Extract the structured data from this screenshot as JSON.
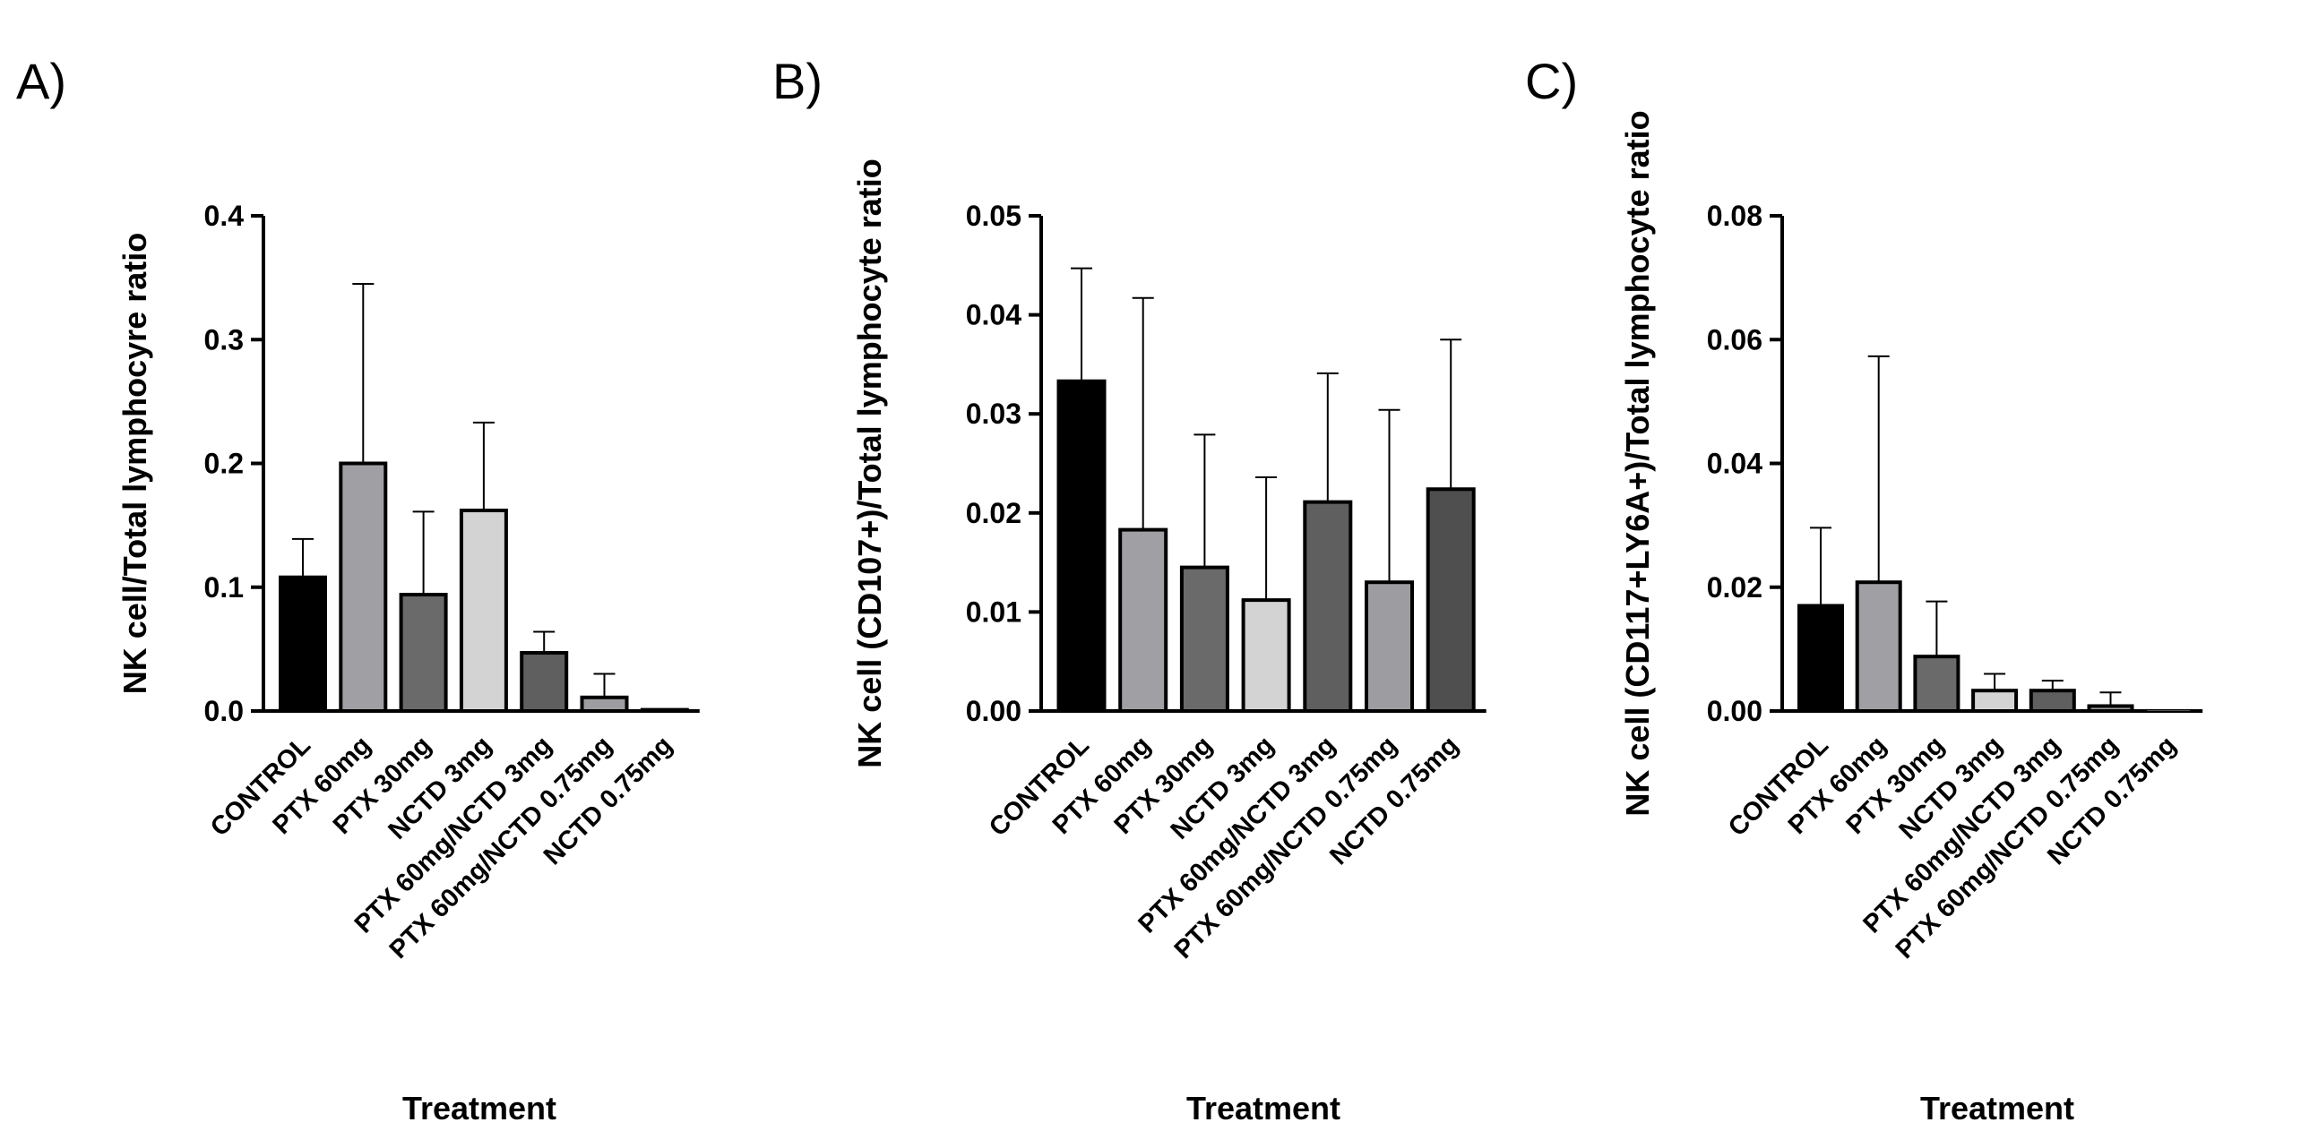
{
  "chart_data": [
    {
      "panel_label": "A)",
      "type": "bar",
      "xlabel": "Treatment",
      "ylabel": "NK cell/Total lymphocyre ratio",
      "ylim": [
        0,
        0.4
      ],
      "yticks": [
        "0.0",
        "0.1",
        "0.2",
        "0.3",
        "0.4"
      ],
      "categories": [
        "CONTROL",
        "PTX 60mg",
        "PTX 30mg",
        "NCTD 3mg",
        "PTX 60mg/NCTD 3mg",
        "PTX 60mg/NCTD 0.75mg",
        "NCTD 0.75mg"
      ],
      "values": [
        0.108,
        0.2,
        0.094,
        0.162,
        0.047,
        0.011,
        0.001
      ],
      "errors": [
        0.031,
        0.145,
        0.067,
        0.071,
        0.017,
        0.019,
        0.0
      ],
      "colors": [
        "#000000",
        "#a0a0a4",
        "#6a6a6a",
        "#d3d3d3",
        "#5f5f5f",
        "#9d9da1",
        "#4f4f4f"
      ]
    },
    {
      "panel_label": "B)",
      "type": "bar",
      "xlabel": "Treatment",
      "ylabel": "NK cell (CD107+)/Total lymphocyte ratio",
      "ylim": [
        0,
        0.05
      ],
      "yticks": [
        "0.00",
        "0.01",
        "0.02",
        "0.03",
        "0.04",
        "0.05"
      ],
      "categories": [
        "CONTROL",
        "PTX 60mg",
        "PTX 30mg",
        "NCTD 3mg",
        "PTX 60mg/NCTD 3mg",
        "PTX 60mg/NCTD 0.75mg",
        "NCTD 0.75mg"
      ],
      "values": [
        0.0333,
        0.0183,
        0.0145,
        0.0112,
        0.0211,
        0.013,
        0.0224
      ],
      "errors": [
        0.0114,
        0.0234,
        0.0134,
        0.0124,
        0.013,
        0.0174,
        0.0151
      ],
      "colors": [
        "#000000",
        "#a0a0a4",
        "#6a6a6a",
        "#d3d3d3",
        "#5f5f5f",
        "#9d9da1",
        "#4f4f4f"
      ]
    },
    {
      "panel_label": "C)",
      "type": "bar",
      "xlabel": "Treatment",
      "ylabel": "NK cell (CD117+LY6A+)/Total lymphocyte ratio",
      "ylim": [
        0,
        0.08
      ],
      "yticks": [
        "0.00",
        "0.02",
        "0.04",
        "0.06",
        "0.08"
      ],
      "categories": [
        "CONTROL",
        "PTX 60mg",
        "PTX 30mg",
        "NCTD 3mg",
        "PTX 60mg/NCTD 3mg",
        "PTX 60mg/NCTD 0.75mg",
        "NCTD 0.75mg"
      ],
      "values": [
        0.017,
        0.0208,
        0.0088,
        0.0033,
        0.0033,
        0.0008,
        0.0
      ],
      "errors": [
        0.0126,
        0.0365,
        0.0089,
        0.0027,
        0.0016,
        0.0022,
        0.0
      ],
      "colors": [
        "#000000",
        "#a0a0a4",
        "#6a6a6a",
        "#d3d3d3",
        "#5f5f5f",
        "#9d9da1",
        "#4f4f4f"
      ]
    }
  ]
}
